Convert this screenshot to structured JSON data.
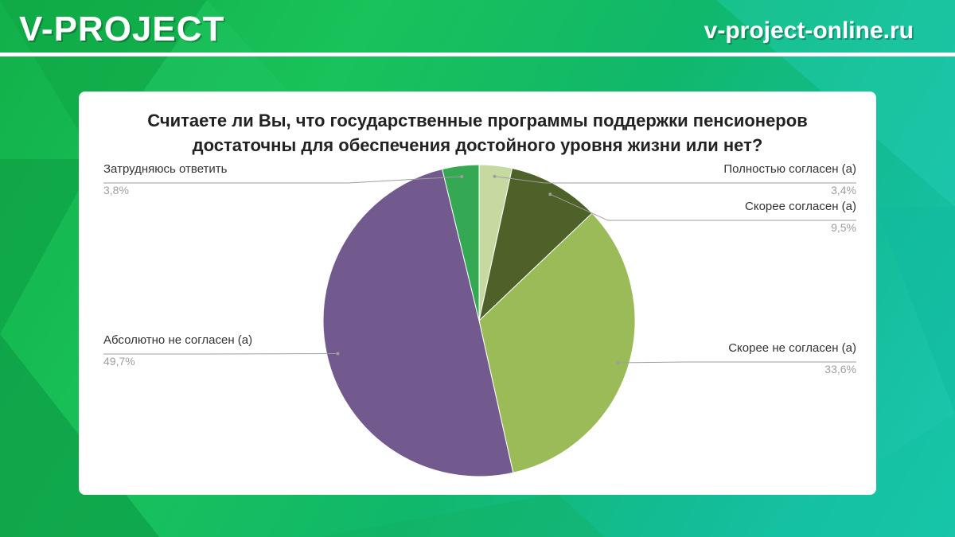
{
  "header": {
    "brand": "V-PROJECT",
    "site": "v-project-online.ru"
  },
  "colors": {
    "background_green": "#12b04a",
    "background_teal": "#1cc8b0"
  },
  "chart_data": {
    "type": "pie",
    "title_lines": [
      "Считаете ли Вы, что государственные программы поддержки пенсионеров",
      "достаточны для обеспечения достойного уровня жизни или нет?"
    ],
    "start_angle_deg": 0,
    "direction": "clockwise",
    "legend": "none",
    "slices": [
      {
        "label": "Полностью согласен (а)",
        "value": 3.4,
        "value_label": "3,4%",
        "color": "#c6d9a0",
        "side": "right"
      },
      {
        "label": "Скорее согласен (а)",
        "value": 9.5,
        "value_label": "9,5%",
        "color": "#4e6129",
        "side": "right"
      },
      {
        "label": "Скорее не согласен (а)",
        "value": 33.6,
        "value_label": "33,6%",
        "color": "#9bbb59",
        "side": "right"
      },
      {
        "label": "Абсолютно не согласен (а)",
        "value": 49.7,
        "value_label": "49,7%",
        "color": "#735a8e",
        "side": "left"
      },
      {
        "label": "Затрудняюсь ответить",
        "value": 3.8,
        "value_label": "3,8%",
        "color": "#34a853",
        "side": "left"
      }
    ]
  }
}
